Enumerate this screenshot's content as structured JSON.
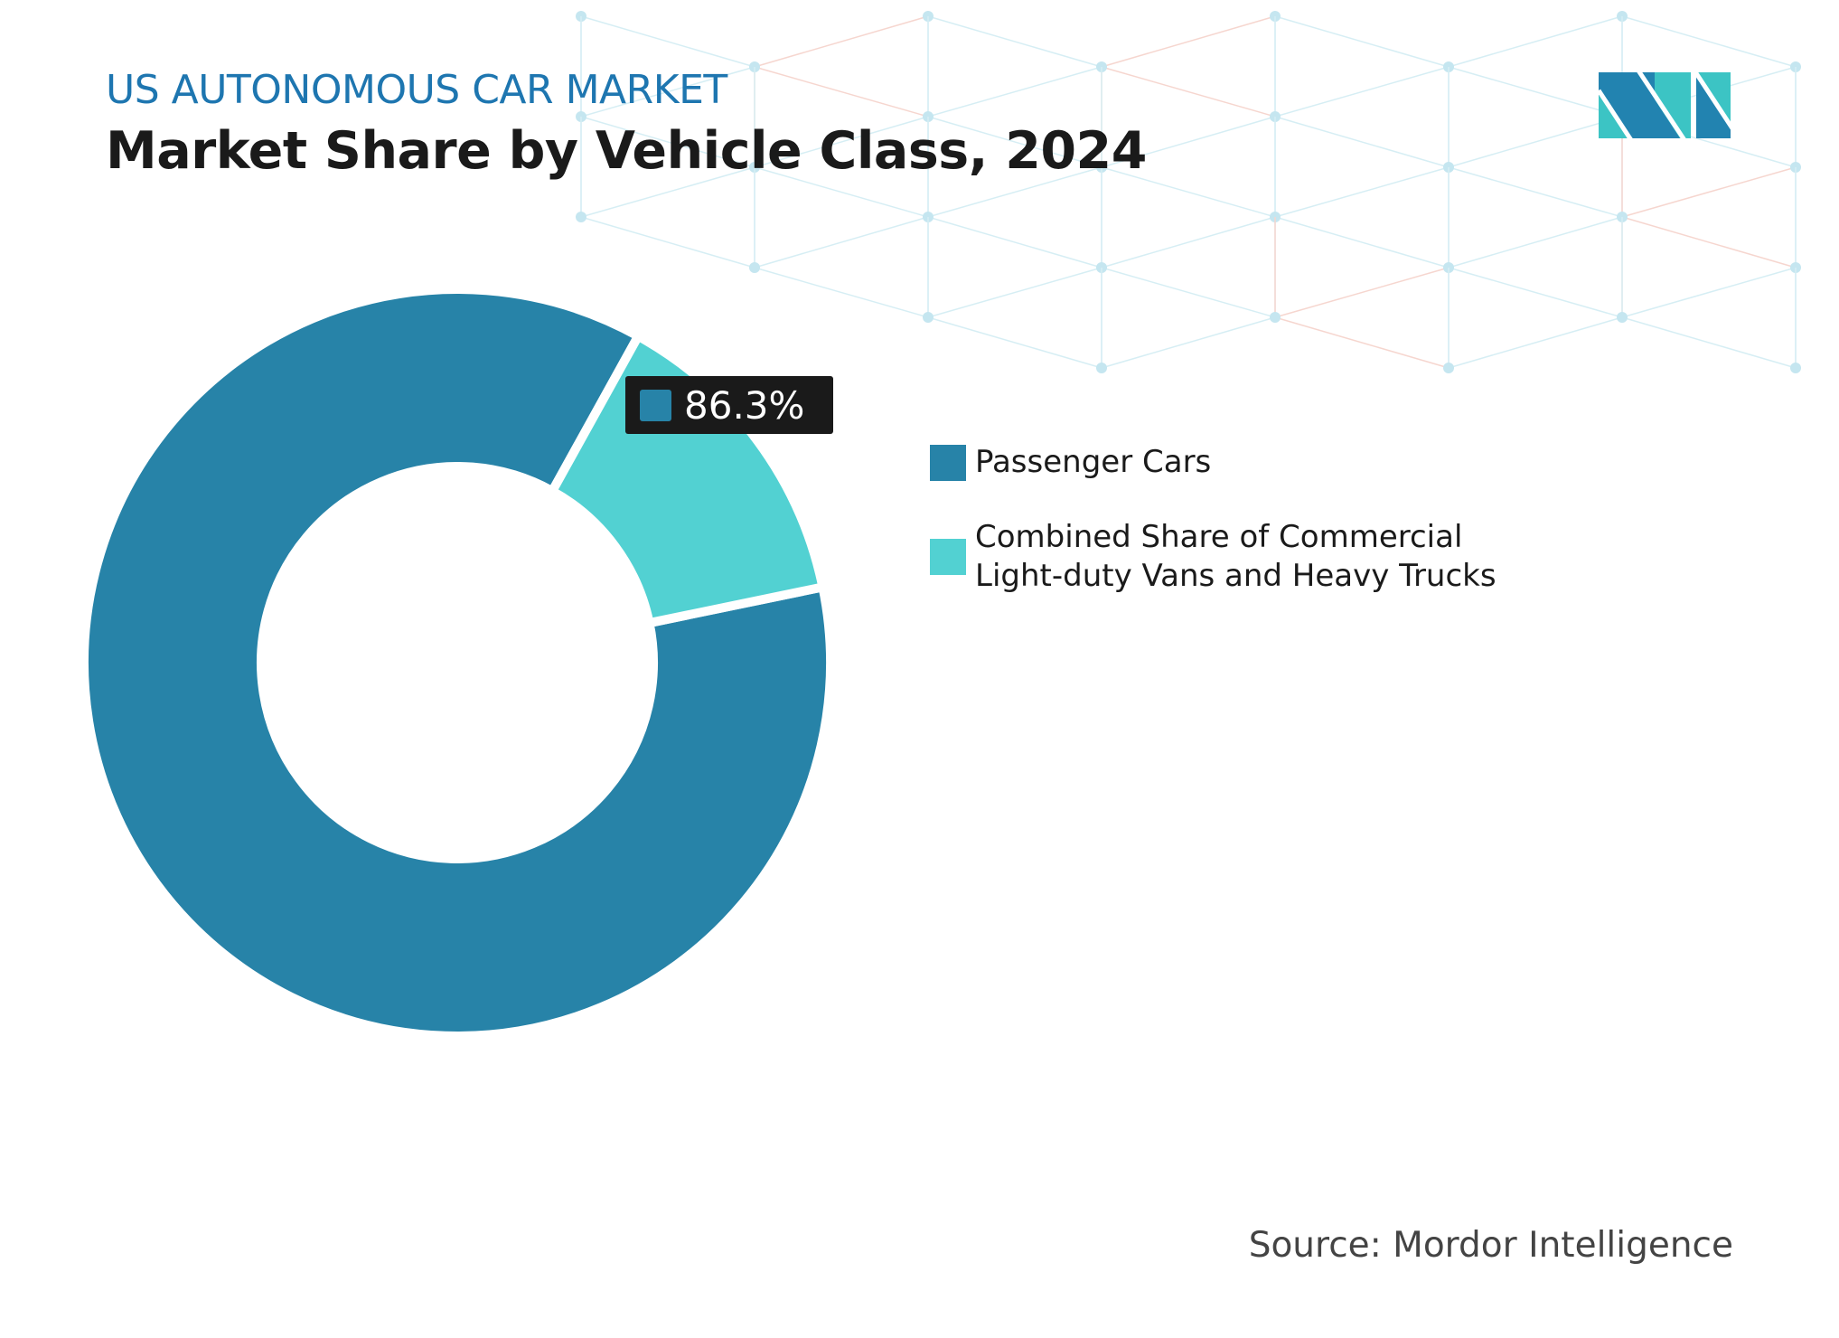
{
  "header": {
    "subtitle": "US AUTONOMOUS CAR MARKET",
    "title": "Market Share by Vehicle Class, 2024"
  },
  "logo": {
    "text": "MI",
    "colors": [
      "#2283b0",
      "#3cc4c4"
    ]
  },
  "chart_data": {
    "type": "pie",
    "variant": "donut",
    "categories": [
      "Passenger Cars",
      "Combined Share of Commercial Light-duty Vans and Heavy Trucks"
    ],
    "values": [
      86.3,
      13.7
    ],
    "colors": [
      "#2783a8",
      "#52d1d2"
    ],
    "data_labels": [
      {
        "series": "Passenger Cars",
        "text": "86.3%"
      }
    ],
    "legend_position": "right"
  },
  "source": "Source: Mordor Intelligence"
}
